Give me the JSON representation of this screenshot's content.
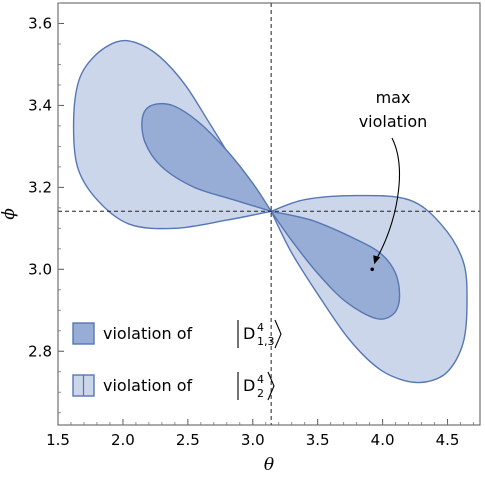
{
  "chart_data": {
    "type": "area",
    "xlabel": "θ",
    "ylabel": "ϕ",
    "xlim": [
      1.5,
      4.75
    ],
    "ylim": [
      2.62,
      3.65
    ],
    "x_ticks": [
      {
        "value": 1.5,
        "label": "1.5"
      },
      {
        "value": 2.0,
        "label": "2.0"
      },
      {
        "value": 2.5,
        "label": "2.5"
      },
      {
        "value": 3.0,
        "label": "3.0"
      },
      {
        "value": 3.5,
        "label": "3.5"
      },
      {
        "value": 4.0,
        "label": "4.0"
      },
      {
        "value": 4.5,
        "label": "4.5"
      }
    ],
    "y_ticks": [
      {
        "value": 2.8,
        "label": "2.8"
      },
      {
        "value": 3.0,
        "label": "3.0"
      },
      {
        "value": 3.2,
        "label": "3.2"
      },
      {
        "value": 3.4,
        "label": "3.4"
      },
      {
        "value": 3.6,
        "label": "3.6"
      }
    ],
    "reference_lines": {
      "x": 3.1416,
      "y": 3.1416
    },
    "series": [
      {
        "legend_prefix": "violation of",
        "legend_ket": "D",
        "legend_sup": "4",
        "legend_sub": "2",
        "color": "#ccd6ea",
        "stroke": "#5577b4",
        "x": [
          3.1416,
          2.8,
          2.4,
          2.05,
          1.8,
          1.65,
          1.62,
          1.66,
          1.78,
          1.95,
          2.1,
          2.28,
          2.48,
          2.68,
          2.9,
          3.1416
        ],
        "y": [
          3.1416,
          3.12,
          3.1,
          3.11,
          3.17,
          3.25,
          3.36,
          3.46,
          3.52,
          3.555,
          3.553,
          3.52,
          3.45,
          3.35,
          3.24,
          3.1416
        ]
      },
      {
        "legend_prefix": "",
        "legend_ket": "",
        "legend_sup": "",
        "legend_sub": "",
        "color": "#ccd6ea",
        "stroke": "#5577b4",
        "x": [
          3.1416,
          3.4,
          3.8,
          4.2,
          4.45,
          4.62,
          4.65,
          4.62,
          4.5,
          4.33,
          4.15,
          3.96,
          3.74,
          3.52,
          3.3,
          3.1416
        ],
        "y": [
          3.1416,
          3.17,
          3.18,
          3.17,
          3.11,
          3.02,
          2.92,
          2.82,
          2.75,
          2.725,
          2.73,
          2.76,
          2.83,
          2.93,
          3.04,
          3.1416
        ]
      },
      {
        "legend_prefix": "violation of",
        "legend_ket": "D",
        "legend_sup": "4",
        "legend_sub": "1,3",
        "color": "#98add5",
        "stroke": "#5577b4",
        "x": [
          3.1416,
          2.85,
          2.55,
          2.3,
          2.17,
          2.15,
          2.22,
          2.38,
          2.58,
          2.8,
          3.0,
          3.1416
        ],
        "y": [
          3.1416,
          3.17,
          3.2,
          3.25,
          3.31,
          3.37,
          3.4,
          3.4,
          3.36,
          3.29,
          3.21,
          3.1416
        ]
      },
      {
        "legend_prefix": "",
        "legend_ket": "",
        "legend_sup": "",
        "legend_sub": "",
        "color": "#98add5",
        "stroke": "#5577b4",
        "x": [
          3.1416,
          3.45,
          3.75,
          3.98,
          4.1,
          4.13,
          4.08,
          3.95,
          3.72,
          3.5,
          3.3,
          3.1416
        ],
        "y": [
          3.1416,
          3.12,
          3.08,
          3.04,
          2.99,
          2.93,
          2.89,
          2.88,
          2.92,
          2.99,
          3.07,
          3.1416
        ]
      }
    ],
    "annotations": [
      {
        "text_lines": [
          "max",
          "violation"
        ],
        "point": {
          "x": 3.92,
          "y": 3.0
        }
      }
    ],
    "legend_position": "bottom-left",
    "grid": false
  }
}
